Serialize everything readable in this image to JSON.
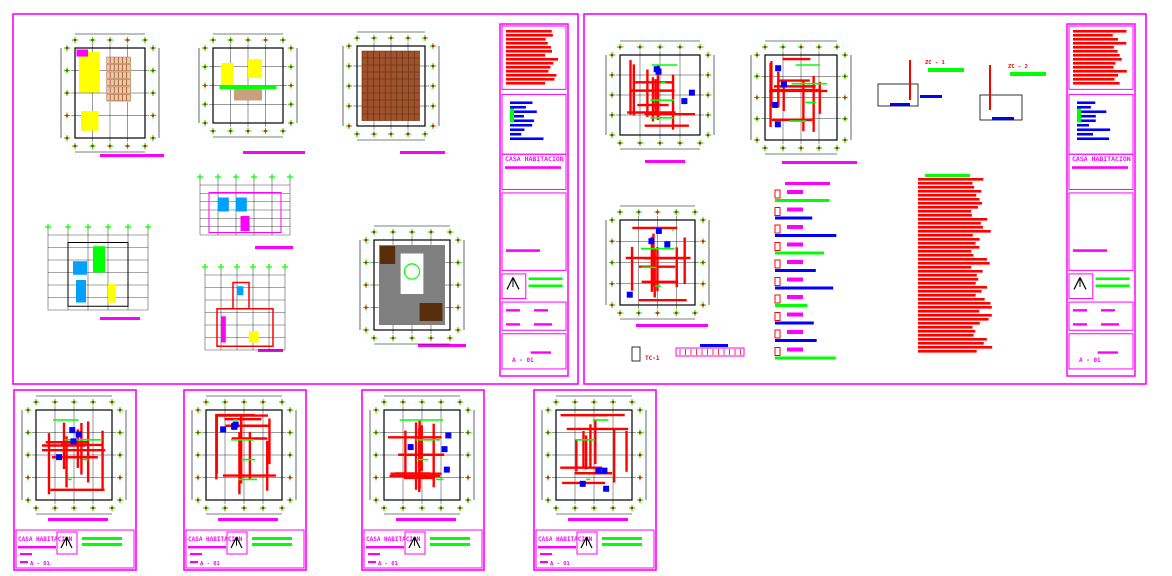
{
  "colors": {
    "background": "#ffffff",
    "sheet_border": "#ff00ff",
    "red_line": "#ff0000",
    "magenta": "#ff00ff",
    "blue": "#0000ff",
    "green": "#00ff00",
    "yellow": "#ffff00",
    "dark_red": "#8b1a1a",
    "grey": "#808080",
    "black": "#000000"
  },
  "sheets": [
    {
      "title": "CASA HABITACION",
      "number": "A - 01"
    },
    {
      "title": "CASA HABITACION",
      "number": "A - 01"
    },
    {
      "title": "CASA HABITACION",
      "number": "A - 01"
    },
    {
      "title": "CASA HABITACION",
      "number": "A - 01"
    },
    {
      "title": "CASA HABITACION",
      "number": "A - 01"
    },
    {
      "title": "CASA HABITACION",
      "number": "A - 01"
    }
  ],
  "details": {
    "zc1": "ZC - 1",
    "zc2": "ZC - 2",
    "tc1": "TC-1"
  },
  "icons": [
    "north-arrow-icon",
    "grid-axis-marker-icon"
  ]
}
